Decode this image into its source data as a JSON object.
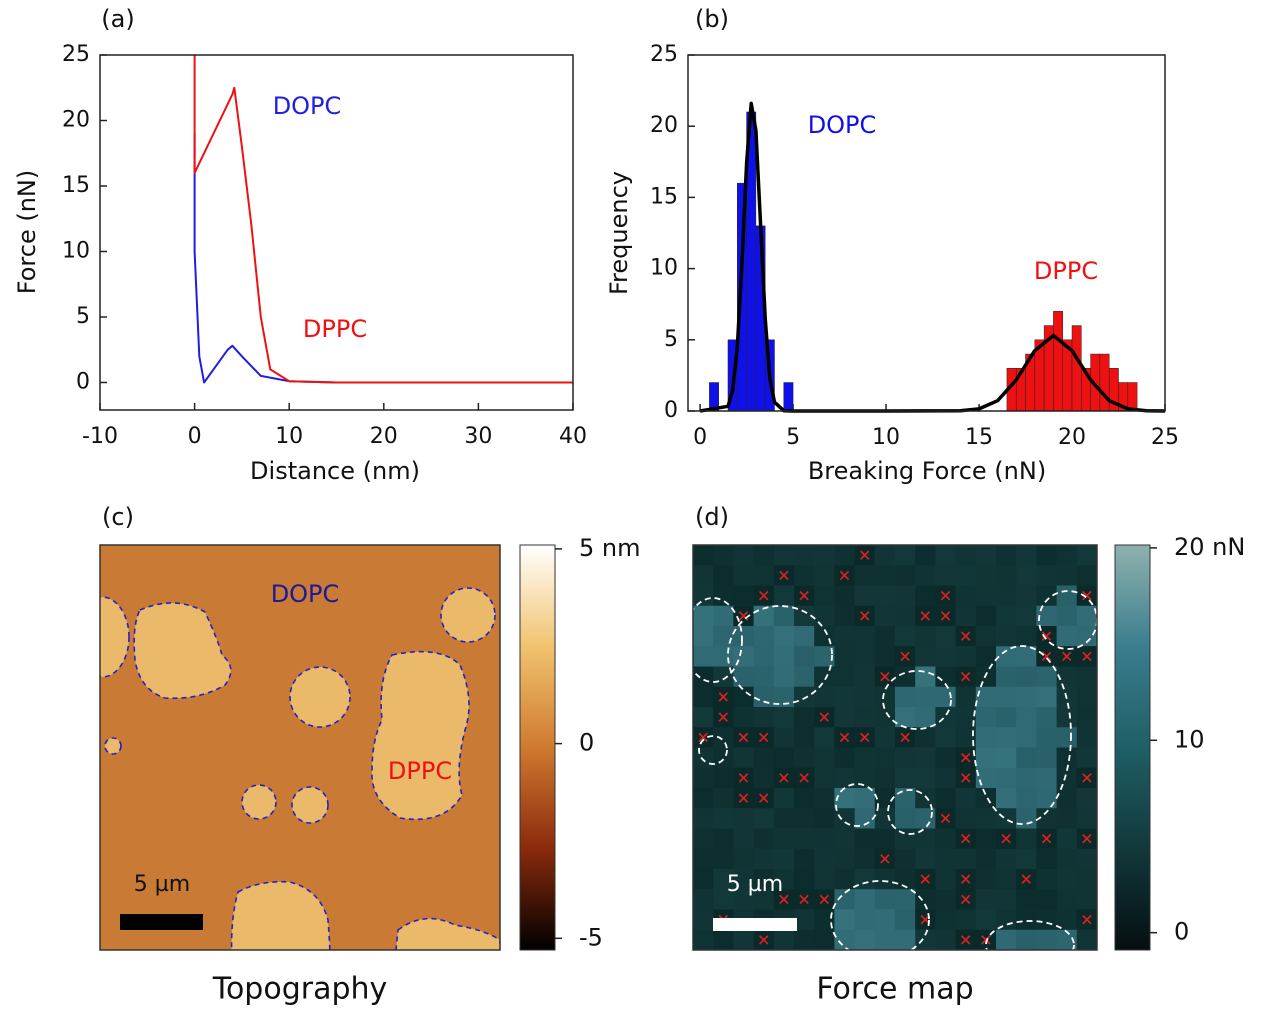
{
  "chart_data": [
    {
      "type": "line",
      "label": "(a)",
      "xlabel": "Distance (nm)",
      "ylabel": "Force (nN)",
      "xlim": [
        -10,
        40
      ],
      "ylim": [
        -2.1,
        25
      ],
      "xticks": [
        -10,
        0,
        10,
        20,
        30,
        40
      ],
      "yticks": [
        0,
        5,
        10,
        15,
        20,
        25
      ],
      "series": [
        {
          "name": "DOPC",
          "color": "#1f1fe0",
          "x": [
            40,
            15,
            10,
            7,
            5,
            4,
            3.5,
            2,
            1,
            0.5,
            0,
            0
          ],
          "values": [
            0,
            0,
            0.1,
            0.5,
            2,
            2.8,
            2.5,
            1,
            0,
            2,
            10,
            19
          ]
        },
        {
          "name": "DPPC",
          "color": "#ee1111",
          "x": [
            40,
            15,
            10,
            8,
            7,
            6,
            5,
            4.2,
            4,
            0,
            0
          ],
          "values": [
            0,
            0,
            0.1,
            1,
            5,
            12,
            18,
            22.5,
            22,
            16,
            25
          ]
        }
      ]
    },
    {
      "type": "histogram",
      "label": "(b)",
      "xlabel": "Breaking Force (nN)",
      "ylabel": "Frequency",
      "xlim": [
        -0.65,
        25
      ],
      "ylim": [
        0,
        25
      ],
      "xticks": [
        0,
        5,
        10,
        15,
        20,
        25
      ],
      "yticks": [
        0,
        5,
        10,
        15,
        20,
        25
      ],
      "series": [
        {
          "name": "DOPC",
          "color": "#1010e8",
          "bins": [
            0.5,
            1,
            1.5,
            2,
            2.5,
            3,
            3.5,
            4,
            4.5,
            5
          ],
          "values": [
            2,
            0,
            5,
            16,
            21,
            13,
            5,
            0,
            2
          ]
        },
        {
          "name": "DPPC",
          "color": "#ee1111",
          "bins": [
            16.5,
            17,
            17.5,
            18,
            18.5,
            19,
            19.5,
            20,
            20.5,
            21,
            21.5,
            22,
            22.5,
            23,
            23.5
          ],
          "values": [
            3,
            3,
            4,
            5,
            6,
            7,
            5,
            6,
            3,
            4,
            4,
            3,
            2,
            2
          ]
        },
        {
          "color": "#000000",
          "x": [
            0,
            1.5,
            1.75,
            2,
            2.25,
            2.5,
            2.75,
            3,
            3.25,
            3.5,
            3.75,
            4,
            4.5,
            5,
            10,
            14,
            15,
            16,
            17,
            18,
            19,
            20,
            21,
            22,
            23,
            24,
            25
          ],
          "values": [
            0,
            0.33,
            1.43,
            4.47,
            10.3,
            17.4,
            21.6,
            19.7,
            13.2,
            6.5,
            2.3,
            0.62,
            0.02,
            0,
            0,
            0.02,
            0.15,
            0.72,
            2.18,
            4.24,
            5.3,
            4.24,
            2.18,
            0.72,
            0.15,
            0.02,
            0
          ]
        }
      ]
    },
    {
      "type": "image",
      "label": "(c)",
      "title": "Topography",
      "scale_bar": "5 µm",
      "annotations": [
        {
          "text": "DOPC",
          "color": "#1a1a9a"
        },
        {
          "text": "DPPC",
          "color": "#ee1111"
        }
      ],
      "clim": [
        -5.3,
        5.1
      ],
      "cticks": [
        {
          "value": 5,
          "label": "5 nm"
        },
        0,
        {
          "value": -5,
          "label": "-5"
        }
      ],
      "colormap": [
        "#000000",
        "#8a2a0c",
        "#cf7a30",
        "#f1c36e",
        "#ffffff"
      ]
    },
    {
      "type": "image",
      "label": "(d)",
      "title": "Force map",
      "scale_bar": "5 µm",
      "clim": [
        -0.9,
        20.15
      ],
      "cticks": [
        {
          "value": 20,
          "label": "20 nN"
        },
        10,
        0
      ],
      "colormap": [
        "#050f10",
        "#12383b",
        "#1f5f66",
        "#3b7d8e",
        "#8fb2ae"
      ]
    }
  ]
}
